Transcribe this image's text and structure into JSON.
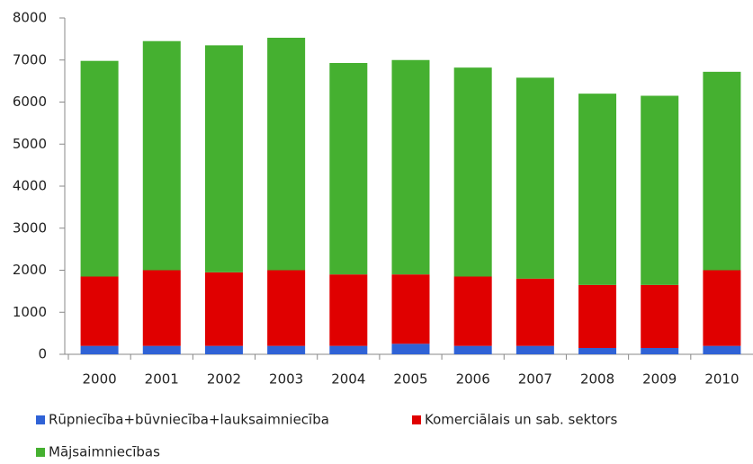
{
  "chart_data": {
    "type": "stacked_bar",
    "categories": [
      "2000",
      "2001",
      "2002",
      "2003",
      "2004",
      "2005",
      "2006",
      "2007",
      "2008",
      "2009",
      "2010"
    ],
    "series": [
      {
        "name": "Rūpniecība+būvniecība+lauksaimniecība",
        "color": "#2f62d6",
        "values": [
          200,
          200,
          200,
          200,
          200,
          250,
          200,
          200,
          150,
          150,
          200
        ]
      },
      {
        "name": "Komerciālais un sab. sektors",
        "color": "#e00000",
        "values": [
          1650,
          1800,
          1750,
          1800,
          1700,
          1650,
          1650,
          1600,
          1500,
          1500,
          1800
        ]
      },
      {
        "name": "Mājsaimniecības",
        "color": "#45b030",
        "values": [
          5130,
          5450,
          5400,
          5530,
          5030,
          5100,
          4970,
          4780,
          4550,
          4500,
          4720
        ]
      }
    ],
    "ylim": [
      0,
      8000
    ],
    "yticks": [
      0,
      1000,
      2000,
      3000,
      4000,
      5000,
      6000,
      7000,
      8000
    ]
  }
}
